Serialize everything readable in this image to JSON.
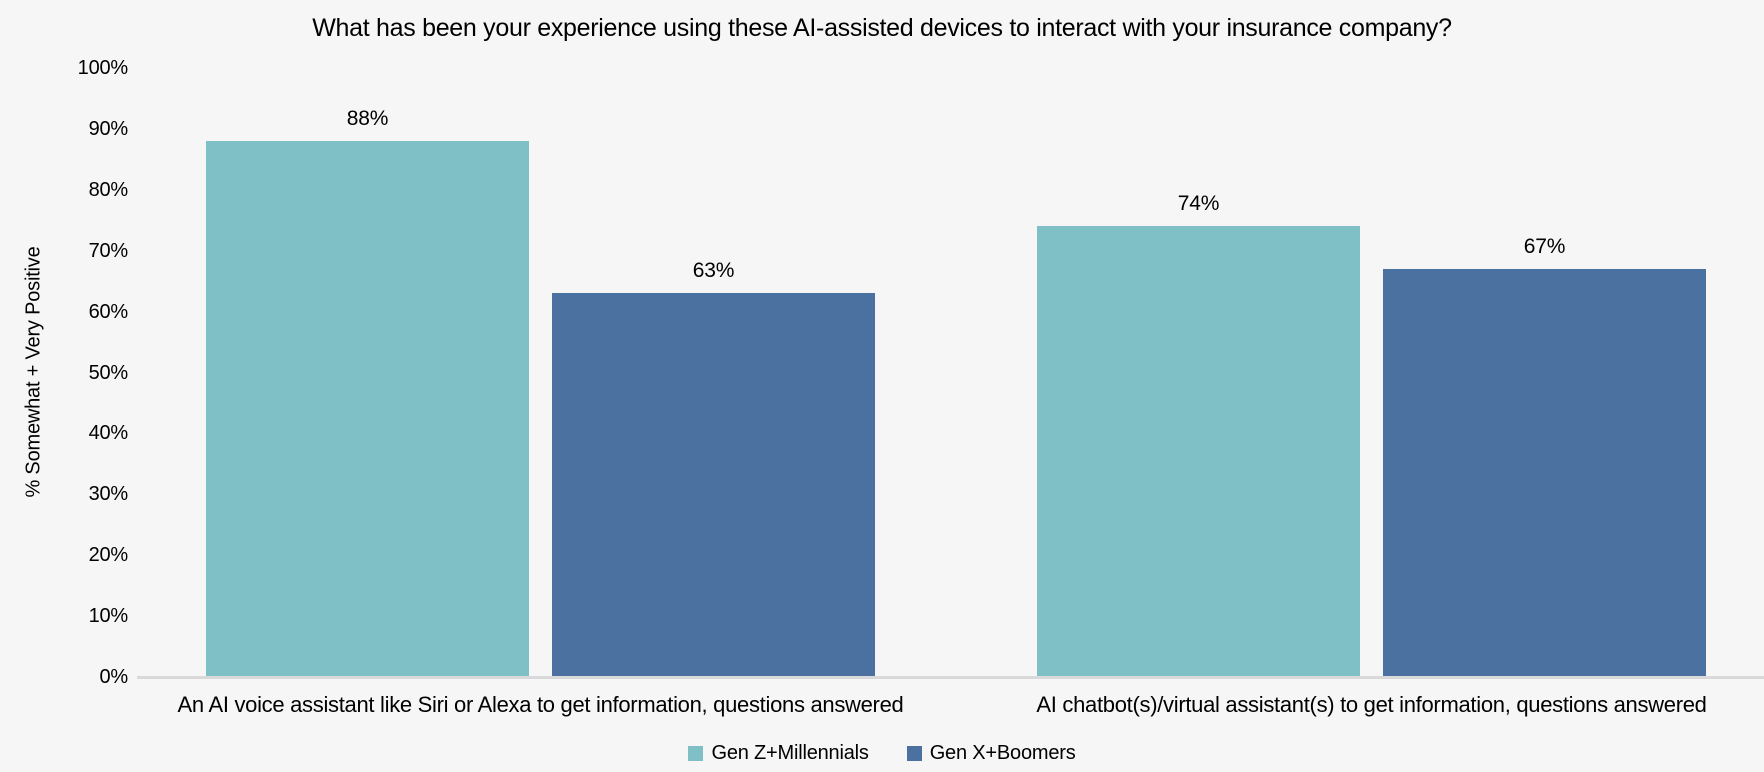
{
  "chart_data": {
    "type": "bar",
    "title": "What has been your experience using these AI-assisted devices to interact with your insurance company?",
    "xlabel": "",
    "ylabel": "% Somewhat + Very Positive",
    "ylim": [
      0,
      100
    ],
    "ytick_labels": [
      "0%",
      "10%",
      "20%",
      "30%",
      "40%",
      "50%",
      "60%",
      "70%",
      "80%",
      "90%",
      "100%"
    ],
    "grid": false,
    "legend_position": "bottom",
    "categories": [
      "An AI voice assistant like Siri or Alexa to get information, questions answered",
      "AI chatbot(s)/virtual assistant(s) to get information, questions answered"
    ],
    "series": [
      {
        "name": "Gen Z+Millennials",
        "color": "#7EC0C6",
        "values": [
          88,
          74
        ],
        "labels": [
          "88%",
          "74%"
        ]
      },
      {
        "name": "Gen X+Boomers",
        "color": "#4A71A0",
        "values": [
          63,
          67
        ],
        "labels": [
          "63%",
          "67%"
        ]
      }
    ]
  },
  "colors": {
    "background": "#F6F6F6",
    "axis_line": "#D9D9D9",
    "text": "#000000"
  }
}
